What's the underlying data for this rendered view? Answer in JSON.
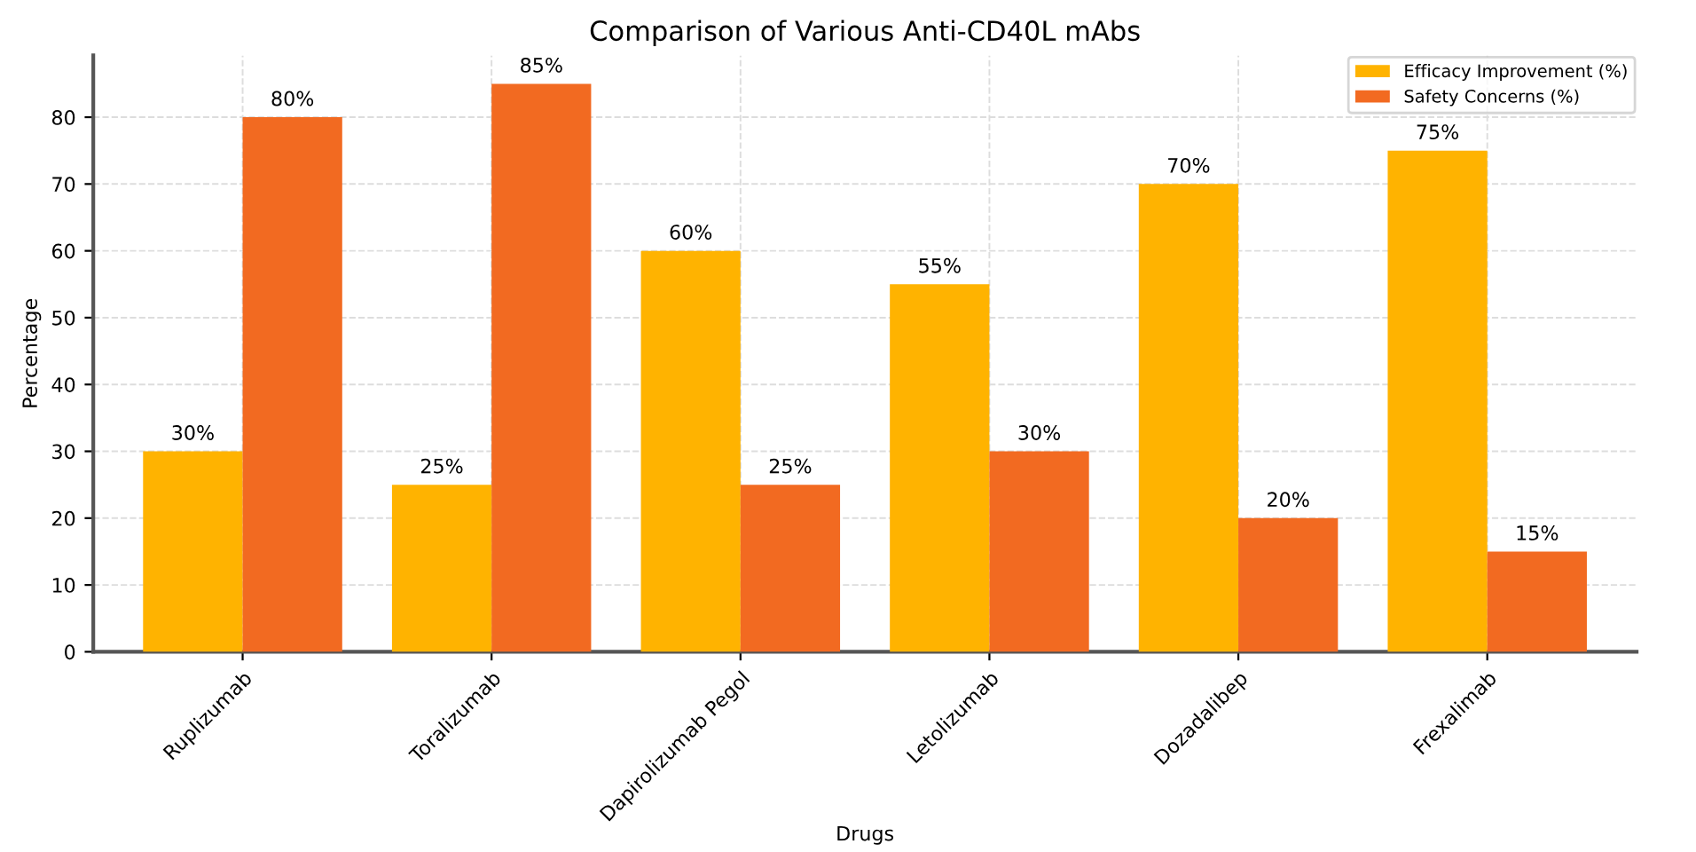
{
  "chart_data": {
    "type": "bar",
    "title": "Comparison of Various Anti-CD40L mAbs",
    "xlabel": "Drugs",
    "ylabel": "Percentage",
    "categories": [
      "Ruplizumab",
      "Toralizumab",
      "Dapirolizumab Pegol",
      "Letolizumab",
      "Dozadalibep",
      "Frexalimab"
    ],
    "series": [
      {
        "name": "Efficacy Improvement (%)",
        "color": "#ffb300",
        "values": [
          30,
          25,
          60,
          55,
          70,
          75
        ],
        "value_labels": [
          "30%",
          "25%",
          "60%",
          "55%",
          "70%",
          "75%"
        ]
      },
      {
        "name": "Safety Concerns (%)",
        "color": "#f26a21",
        "values": [
          80,
          85,
          25,
          30,
          20,
          15
        ],
        "value_labels": [
          "80%",
          "85%",
          "25%",
          "30%",
          "20%",
          "15%"
        ]
      }
    ],
    "ylim": [
      0,
      89.25
    ],
    "yticks": [
      0,
      10,
      20,
      30,
      40,
      50,
      60,
      70,
      80
    ],
    "grid": true,
    "legend": "top right"
  }
}
